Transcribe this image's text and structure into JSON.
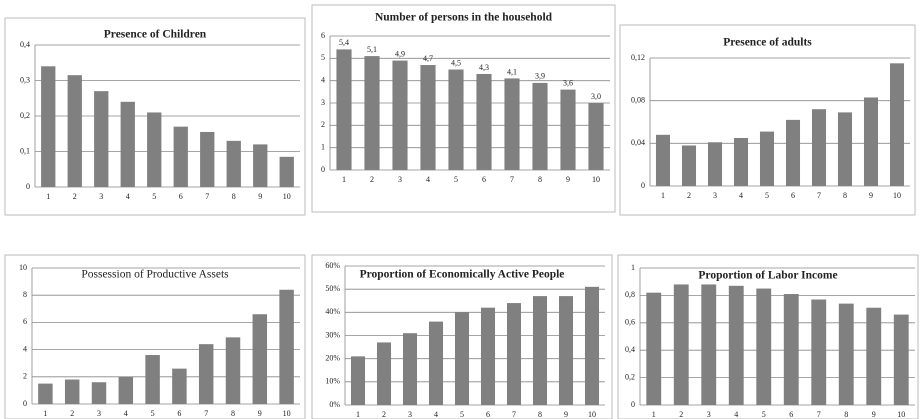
{
  "chart_data": [
    {
      "type": "bar",
      "title": "Presence of Children",
      "categories": [
        "1",
        "2",
        "3",
        "4",
        "5",
        "6",
        "7",
        "8",
        "9",
        "10"
      ],
      "values": [
        0.34,
        0.315,
        0.27,
        0.24,
        0.21,
        0.17,
        0.155,
        0.13,
        0.12,
        0.085
      ],
      "color": "#808080",
      "ylim": [
        0,
        0.4
      ],
      "yticks": [
        0,
        {
          "value": 0.1,
          "label": "0,1"
        },
        {
          "value": 0.2,
          "label": "0,2"
        },
        {
          "value": 0.3,
          "label": "0,3"
        },
        {
          "value": 0.4,
          "label": "0,4"
        }
      ],
      "grid": true
    },
    {
      "type": "bar",
      "title": "Number of persons in the household",
      "categories": [
        "1",
        "2",
        "3",
        "4",
        "5",
        "6",
        "7",
        "8",
        "9",
        "10"
      ],
      "values": [
        5.4,
        5.1,
        4.9,
        4.7,
        4.5,
        4.3,
        4.1,
        3.9,
        3.6,
        3.0
      ],
      "value_labels": [
        "5,4",
        "5,1",
        "4,9",
        "4,7",
        "4,5",
        "4,3",
        "4,1",
        "3,9",
        "3,6",
        "3,0"
      ],
      "color": "#808080",
      "ylim": [
        0,
        6
      ],
      "yticks": [
        0,
        1,
        2,
        3,
        4,
        5,
        6
      ],
      "grid": true
    },
    {
      "type": "bar",
      "title": "Presence of adults",
      "categories": [
        "1",
        "2",
        "3",
        "4",
        "5",
        "6",
        "7",
        "8",
        "9",
        "10"
      ],
      "values": [
        0.048,
        0.038,
        0.041,
        0.045,
        0.051,
        0.062,
        0.072,
        0.069,
        0.083,
        0.115
      ],
      "color": "#808080",
      "ylim": [
        0,
        0.12
      ],
      "yticks": [
        0,
        {
          "value": 0.04,
          "label": "0,04"
        },
        {
          "value": 0.08,
          "label": "0,08"
        },
        {
          "value": 0.12,
          "label": "0,12"
        }
      ],
      "grid": true
    },
    {
      "type": "bar",
      "title": "Possession of Productive Assets",
      "categories": [
        "1",
        "2",
        "3",
        "4",
        "5",
        "6",
        "7",
        "8",
        "9",
        "10"
      ],
      "values": [
        1.5,
        1.8,
        1.6,
        2.0,
        3.6,
        2.6,
        4.4,
        4.9,
        6.6,
        8.4
      ],
      "color": "#808080",
      "ylim": [
        0,
        10
      ],
      "yticks": [
        0,
        2,
        4,
        6,
        8,
        10
      ],
      "grid": true
    },
    {
      "type": "bar",
      "title": "Proportion of Economically Active People",
      "categories": [
        "1",
        "2",
        "3",
        "4",
        "5",
        "6",
        "7",
        "8",
        "9",
        "10"
      ],
      "values": [
        21,
        27,
        31,
        36,
        40,
        42,
        44,
        47,
        47,
        51
      ],
      "color": "#808080",
      "ylim": [
        0,
        60
      ],
      "yticks": [
        {
          "value": 0,
          "label": "0%"
        },
        {
          "value": 10,
          "label": "10%"
        },
        {
          "value": 20,
          "label": "20%"
        },
        {
          "value": 30,
          "label": "30%"
        },
        {
          "value": 40,
          "label": "40%"
        },
        {
          "value": 50,
          "label": "50%"
        },
        {
          "value": 60,
          "label": "60%"
        }
      ],
      "grid": true
    },
    {
      "type": "bar",
      "title": "Proportion of Labor Income",
      "categories": [
        "1",
        "2",
        "3",
        "4",
        "5",
        "6",
        "7",
        "8",
        "9",
        "10"
      ],
      "values": [
        0.82,
        0.88,
        0.88,
        0.87,
        0.85,
        0.81,
        0.77,
        0.74,
        0.71,
        0.66
      ],
      "color": "#808080",
      "ylim": [
        0,
        1
      ],
      "yticks": [
        0,
        {
          "value": 0.2,
          "label": "0,2"
        },
        {
          "value": 0.4,
          "label": "0,4"
        },
        {
          "value": 0.6,
          "label": "0,6"
        },
        {
          "value": 0.8,
          "label": "0,8"
        },
        1
      ],
      "grid": true
    }
  ]
}
